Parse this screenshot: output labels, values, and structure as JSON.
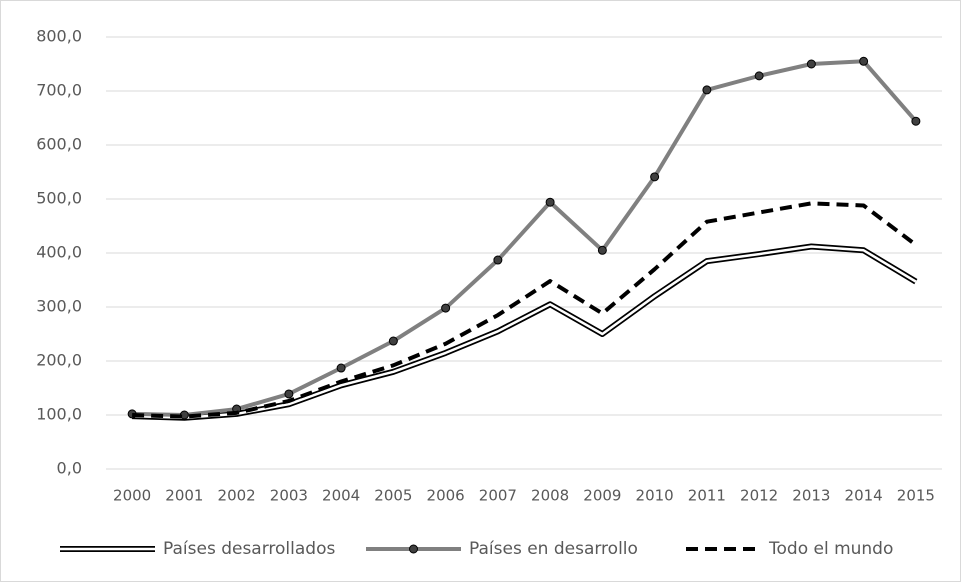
{
  "chart_data": {
    "type": "line",
    "categories": [
      "2000",
      "2001",
      "2002",
      "2003",
      "2004",
      "2005",
      "2006",
      "2007",
      "2008",
      "2009",
      "2010",
      "2011",
      "2012",
      "2013",
      "2014",
      "2015"
    ],
    "series": [
      {
        "name": "Países desarrollados",
        "color": "#000000",
        "values": [
          98,
          95,
          102,
          120,
          155,
          180,
          215,
          255,
          305,
          250,
          320,
          385,
          398,
          412,
          405,
          347
        ]
      },
      {
        "name": "Países en desarrollo",
        "color": "#808080",
        "values": [
          102,
          100,
          111,
          139,
          187,
          237,
          298,
          387,
          494,
          405,
          541,
          702,
          728,
          750,
          755,
          644
        ]
      },
      {
        "name": "Todo el mundo",
        "color": "#000000",
        "values": [
          100,
          97,
          104,
          126,
          162,
          192,
          232,
          285,
          348,
          288,
          370,
          458,
          475,
          492,
          488,
          415
        ]
      }
    ],
    "ylim": [
      0,
      800
    ],
    "yticks": [
      {
        "value": 0,
        "label": "0,0"
      },
      {
        "value": 100,
        "label": "100,0"
      },
      {
        "value": 200,
        "label": "200,0"
      },
      {
        "value": 300,
        "label": "300,0"
      },
      {
        "value": 400,
        "label": "400,0"
      },
      {
        "value": 500,
        "label": "500,0"
      },
      {
        "value": 600,
        "label": "600,0"
      },
      {
        "value": 700,
        "label": "700,0"
      },
      {
        "value": 800,
        "label": "800,0"
      }
    ],
    "grid": true,
    "legend": "bottom"
  }
}
